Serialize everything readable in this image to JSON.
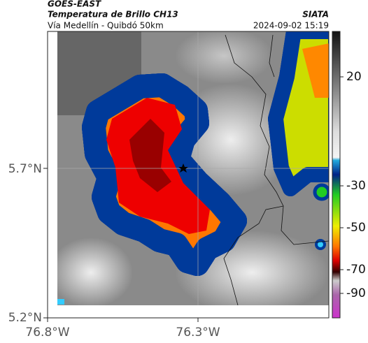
{
  "header": {
    "source": "GOES-EAST",
    "title": "Temperatura de Brillo CH13",
    "route": "Vía Medellín - Quibdó 50km",
    "brand": "SIATA",
    "datetime": "2024-09-02 15:19"
  },
  "axes": {
    "lat_labels": [
      "5.7°N",
      "5.2°N"
    ],
    "lon_labels": [
      "76.8°W",
      "76.3°W"
    ]
  },
  "colorbar": {
    "ticks": [
      "20",
      "-30",
      "-50",
      "-70",
      "-90"
    ]
  }
}
